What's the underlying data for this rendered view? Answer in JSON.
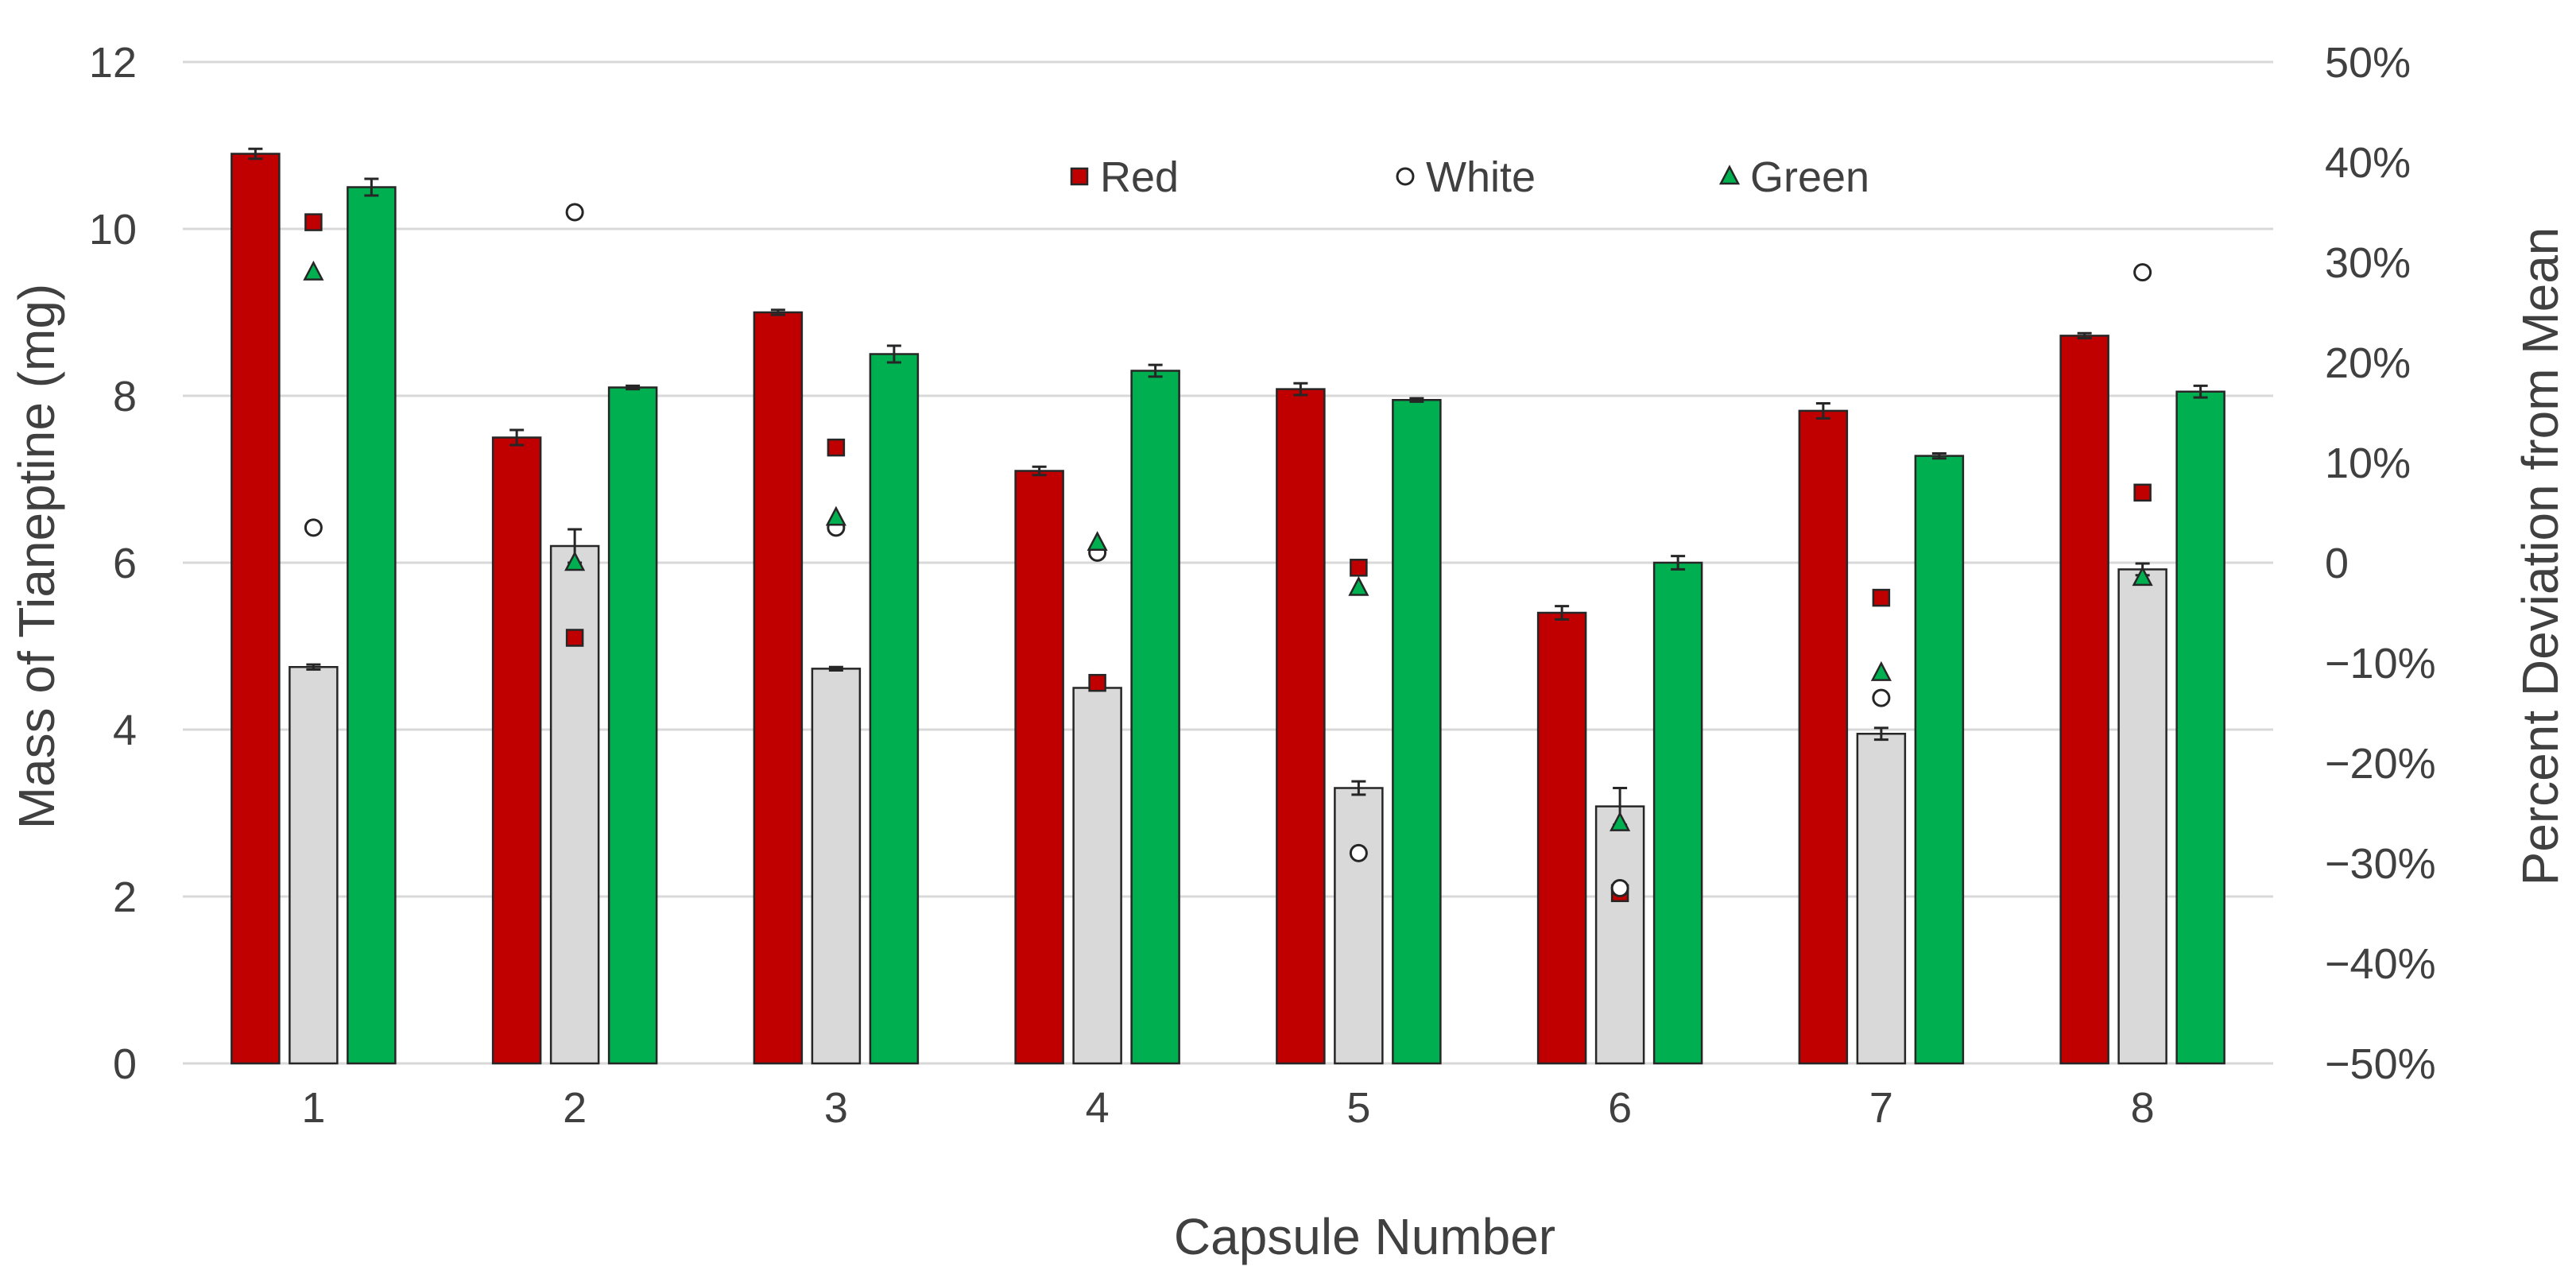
{
  "chart_data": {
    "type": "bar",
    "categories": [
      "1",
      "2",
      "3",
      "4",
      "5",
      "6",
      "7",
      "8"
    ],
    "xlabel": "Capsule Number",
    "ylabel": "Mass of Tianeptine (mg)",
    "y2label": "Percent Deviation from Mean",
    "ylim": [
      0,
      12
    ],
    "y_ticks": [
      "0",
      "2",
      "4",
      "6",
      "8",
      "10",
      "12"
    ],
    "y2lim": [
      -50,
      50
    ],
    "y2_ticks": [
      "−50%",
      "−40%",
      "−30%",
      "−20%",
      "−10%",
      "0",
      "10%",
      "20%",
      "30%",
      "40%",
      "50%"
    ],
    "grid": true,
    "legend_position": "top-center",
    "series": [
      {
        "name": "Red",
        "color": "#c00000",
        "values": [
          10.9,
          7.5,
          9.0,
          7.1,
          8.08,
          5.4,
          7.82,
          8.72
        ],
        "errors": [
          0.06,
          0.09,
          0.03,
          0.05,
          0.07,
          0.08,
          0.09,
          0.03
        ]
      },
      {
        "name": "White",
        "color": "#d9d9d9",
        "values": [
          4.75,
          6.2,
          4.73,
          4.5,
          3.3,
          3.08,
          3.95,
          5.92
        ],
        "errors": [
          0.03,
          0.2,
          0.02,
          0.02,
          0.08,
          0.22,
          0.07,
          0.07
        ]
      },
      {
        "name": "Green",
        "color": "#00b050",
        "values": [
          10.5,
          8.1,
          8.5,
          8.3,
          7.95,
          6.0,
          7.28,
          8.05
        ],
        "errors": [
          0.1,
          0.02,
          0.1,
          0.07,
          0.02,
          0.08,
          0.03,
          0.07
        ]
      }
    ],
    "deviation_series": [
      {
        "name": "Red",
        "marker": "square",
        "color": "#c00000",
        "values": [
          34,
          -7.5,
          11.5,
          -12,
          -0.5,
          -33,
          -3.5,
          7
        ]
      },
      {
        "name": "White",
        "marker": "circle",
        "color": "#ffffff",
        "values": [
          3.5,
          35,
          3.5,
          1,
          -29,
          -32.5,
          -13.5,
          29
        ]
      },
      {
        "name": "Green",
        "marker": "triangle",
        "color": "#00b050",
        "values": [
          29,
          0,
          4.5,
          2,
          -2.5,
          -26,
          -11,
          -1.5
        ]
      }
    ],
    "legend": [
      {
        "label": "Red",
        "marker": "square",
        "color": "#c00000"
      },
      {
        "label": "White",
        "marker": "circle",
        "color": "#ffffff"
      },
      {
        "label": "Green",
        "marker": "triangle",
        "color": "#00b050"
      }
    ]
  }
}
